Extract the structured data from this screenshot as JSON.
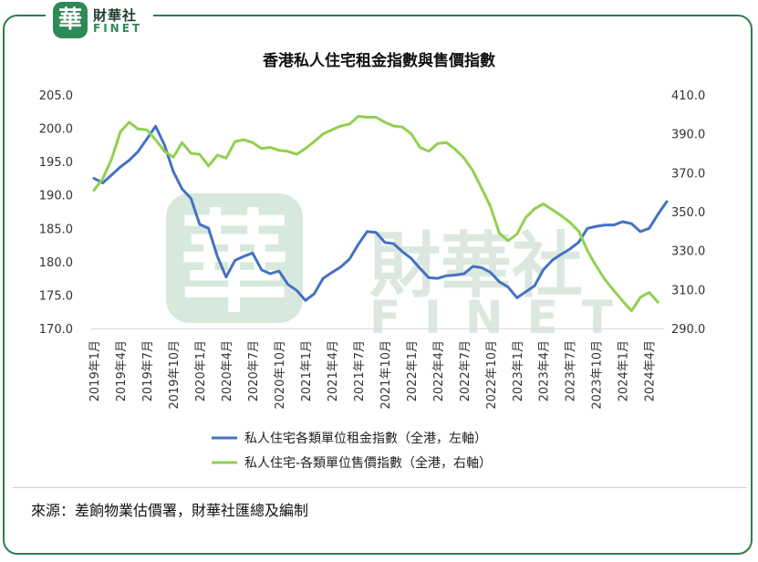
{
  "logo": {
    "badge": "華",
    "cn": "財華社",
    "en": "FINET"
  },
  "watermark": {
    "badge": "華",
    "cn": "財華社",
    "en": "FINET"
  },
  "source_text": "來源：差餉物業估價署，財華社匯總及編制",
  "colors": {
    "rent": "#4472c4",
    "sales": "#92d050",
    "frame": "#2e7d4e",
    "watermark": "#cfe3d6"
  },
  "chart_data": {
    "type": "line",
    "title": "香港私人住宅租金指數與售價指數",
    "x_labels": [
      "2019年1月",
      "2019年4月",
      "2019年7月",
      "2019年10月",
      "2020年1月",
      "2020年4月",
      "2020年7月",
      "2020年10月",
      "2021年1月",
      "2021年4月",
      "2021年7月",
      "2021年10月",
      "2022年1月",
      "2022年4月",
      "2022年7月",
      "2022年10月",
      "2023年1月",
      "2023年4月",
      "2023年7月",
      "2023年10月",
      "2024年1月",
      "2024年4月"
    ],
    "left_axis": {
      "ticks": [
        "205.0",
        "200.0",
        "195.0",
        "190.0",
        "185.0",
        "180.0",
        "175.0",
        "170.0"
      ],
      "ylim": [
        170,
        205
      ]
    },
    "right_axis": {
      "ticks": [
        "410.0",
        "390.0",
        "370.0",
        "350.0",
        "330.0",
        "310.0",
        "290.0"
      ],
      "ylim": [
        290,
        410
      ]
    },
    "series": [
      {
        "name": "私人住宅各類單位租金指數（全港，左軸）",
        "axis": "left",
        "values": [
          192.5,
          191.8,
          193.0,
          194.2,
          195.2,
          196.5,
          198.4,
          200.3,
          197.5,
          193.5,
          190.9,
          189.5,
          185.6,
          185.0,
          180.8,
          177.7,
          180.2,
          180.8,
          181.3,
          178.8,
          178.2,
          178.6,
          176.6,
          175.7,
          174.2,
          175.2,
          177.5,
          178.4,
          179.2,
          180.4,
          182.6,
          184.5,
          184.4,
          182.9,
          182.7,
          181.5,
          180.5,
          179.0,
          177.6,
          177.5,
          177.9,
          178.0,
          178.2,
          179.3,
          179.1,
          178.4,
          177.0,
          176.2,
          174.6,
          175.5,
          176.4,
          178.8,
          180.2,
          181.1,
          181.9,
          182.9,
          185.0,
          185.3,
          185.5,
          185.5,
          186.0,
          185.7,
          184.5,
          185.0,
          187.1,
          189.0
        ]
      },
      {
        "name": "私人住宅-各類單位售價指數（全港，右軸）",
        "axis": "right",
        "values": [
          361.0,
          367.0,
          377.0,
          391.0,
          396.0,
          392.5,
          392.0,
          387.0,
          381.0,
          378.0,
          385.5,
          380.0,
          379.5,
          373.5,
          379.0,
          377.5,
          386.0,
          387.0,
          385.5,
          382.5,
          383.0,
          381.5,
          381.0,
          379.5,
          382.5,
          386.0,
          390.0,
          392.0,
          394.0,
          395.0,
          399.0,
          398.5,
          398.5,
          396.0,
          394.0,
          393.5,
          390.0,
          383.0,
          381.0,
          385.0,
          385.5,
          382.0,
          377.5,
          371.0,
          362.0,
          352.5,
          339.0,
          335.0,
          338.5,
          347.0,
          351.5,
          354.0,
          351.0,
          348.0,
          344.5,
          340.0,
          330.0,
          322.0,
          315.0,
          309.5,
          304.0,
          299.0,
          306.0,
          308.5,
          303.5
        ]
      }
    ],
    "legend": "bottom",
    "grid": false
  }
}
